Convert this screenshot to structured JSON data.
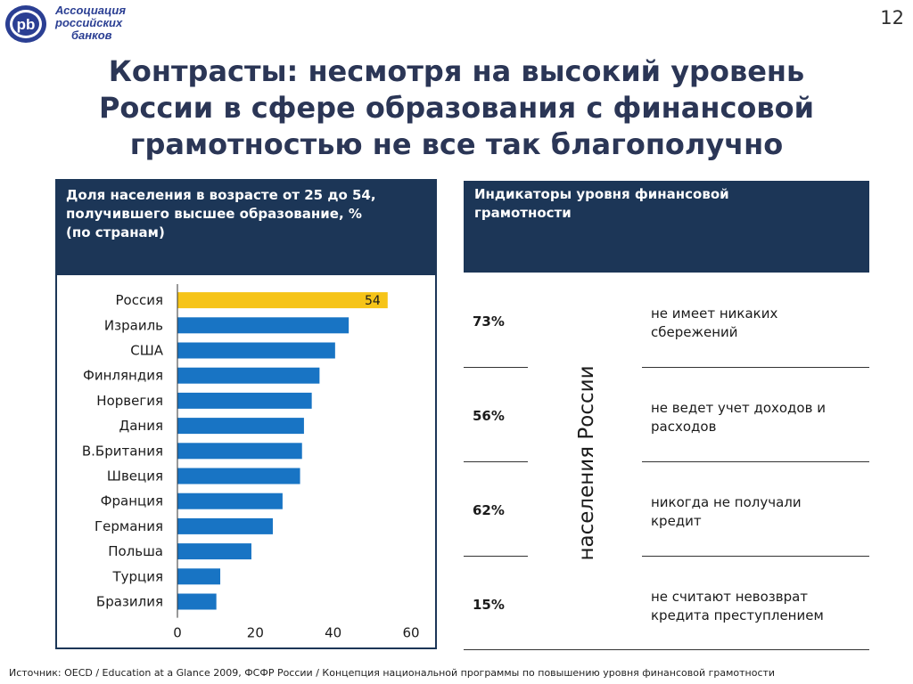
{
  "header": {
    "logo_text": [
      "Ассоциация",
      "российских",
      "банков"
    ],
    "logo_mark": "pb",
    "page_number": "12"
  },
  "title": [
    "Контрасты: несмотря на высокий уровень",
    "России в сфере образования с финансовой",
    "грамотностью не все так благополучно"
  ],
  "chart_panel": {
    "header": [
      "Доля населения в возрасте от 25 до 54,",
      "получившего высшее образование, %",
      "(по странам)"
    ]
  },
  "chart_data": {
    "type": "bar",
    "orientation": "horizontal",
    "categories": [
      "Россия",
      "Израиль",
      "США",
      "Финляндия",
      "Норвегия",
      "Дания",
      "В.Британия",
      "Швеция",
      "Франция",
      "Германия",
      "Польша",
      "Турция",
      "Бразилия"
    ],
    "values": [
      54,
      44,
      40.5,
      36.5,
      34.5,
      32.5,
      32,
      31.5,
      27,
      24.5,
      19,
      11,
      10
    ],
    "data_labels": {
      "Россия": "54"
    },
    "highlight": "Россия",
    "xlim": [
      0,
      60
    ],
    "xticks": [
      "0",
      "20",
      "40",
      "60"
    ],
    "colors": {
      "bar": "#1874c4",
      "highlight": "#f6c418",
      "axis": "#333333"
    },
    "grid": false
  },
  "indicators": {
    "header": [
      "Индикаторы уровня финансовой",
      "грамотности"
    ],
    "side_label": "населения России",
    "items": [
      {
        "percent": "73%",
        "desc": [
          "не имеет никаких",
          "сбережений"
        ]
      },
      {
        "percent": "56%",
        "desc": [
          "не ведет учет доходов и",
          "расходов"
        ]
      },
      {
        "percent": "62%",
        "desc": [
          "никогда не получали",
          "кредит"
        ]
      },
      {
        "percent": "15%",
        "desc": [
          "не считают невозврат",
          "кредита преступлением"
        ]
      }
    ]
  },
  "source": "Источник:  OECD / Education at a Glance 2009, ФСФР России / Концепция национальной программы по повышению уровня финансовой грамотности",
  "colors": {
    "navy": "#1c3657",
    "title": "#2b3656",
    "logo": "#2b3f93"
  }
}
